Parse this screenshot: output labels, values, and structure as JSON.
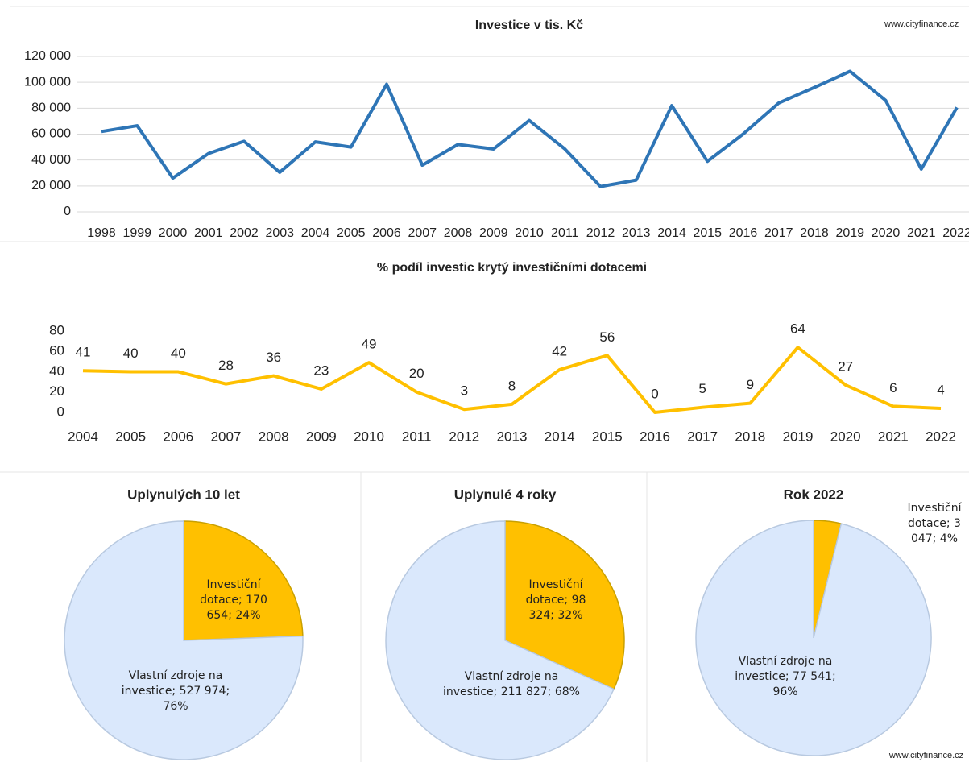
{
  "chart_data": [
    {
      "type": "line",
      "title": "Investice v tis. Kč",
      "note": "www.cityfinance.cz",
      "color": "#2e75b6",
      "grid": true,
      "categories": [
        "1998",
        "1999",
        "2000",
        "2001",
        "2002",
        "2003",
        "2004",
        "2005",
        "2006",
        "2007",
        "2008",
        "2009",
        "2010",
        "2011",
        "2012",
        "2013",
        "2014",
        "2015",
        "2016",
        "2017",
        "2018",
        "2019",
        "2020",
        "2021",
        "2022"
      ],
      "values": [
        62000,
        66500,
        26000,
        45000,
        54500,
        30500,
        54000,
        50000,
        98500,
        36000,
        52000,
        48500,
        70500,
        48500,
        19500,
        24500,
        82000,
        39000,
        60000,
        84000,
        96000,
        108500,
        86000,
        33000,
        80588
      ],
      "ylim": [
        0,
        120000
      ],
      "yticks": [
        0,
        {
          "value": 20000,
          "label": "20 000"
        },
        {
          "value": 40000,
          "label": "40 000"
        },
        {
          "value": 60000,
          "label": "60 000"
        },
        {
          "value": 80000,
          "label": "80 000"
        },
        {
          "value": 100000,
          "label": "100 000"
        },
        {
          "value": 120000,
          "label": "120 000"
        }
      ]
    },
    {
      "type": "line",
      "title": "% podíl investic krytý investičními dotacemi",
      "color": "#ffc000",
      "grid": false,
      "data_labels": true,
      "categories": [
        "2004",
        "2005",
        "2006",
        "2007",
        "2008",
        "2009",
        "2010",
        "2011",
        "2012",
        "2013",
        "2014",
        "2015",
        "2016",
        "2017",
        "2018",
        "2019",
        "2020",
        "2021",
        "2022"
      ],
      "values": [
        41,
        40,
        40,
        28,
        36,
        23,
        49,
        20,
        3,
        8,
        42,
        56,
        0,
        5,
        9,
        64,
        27,
        6,
        4
      ],
      "ylim": [
        0,
        80
      ],
      "yticks": [
        0,
        20,
        40,
        60,
        80
      ]
    },
    {
      "type": "pie",
      "title": "Uplynulých 10 let",
      "colors": [
        "#ffc000",
        "#dae8fc"
      ],
      "labels": [
        "Investiční dotace; 170 654; 24%",
        "Vlastní zdroje na investice; 527 974; 76%"
      ],
      "values": [
        170654,
        527974
      ]
    },
    {
      "type": "pie",
      "title": "Uplynulé 4 roky",
      "colors": [
        "#ffc000",
        "#dae8fc"
      ],
      "labels": [
        "Investiční dotace; 98 324; 32%",
        "Vlastní zdroje na investice; 211 827; 68%"
      ],
      "values": [
        98324,
        211827
      ]
    },
    {
      "type": "pie",
      "title": "Rok 2022",
      "note": "www.cityfinance.cz",
      "colors": [
        "#ffc000",
        "#dae8fc"
      ],
      "labels": [
        "Investiční dotace; 3 047; 4%",
        "Vlastní zdroje na investice; 77 541; 96%"
      ],
      "values": [
        3047,
        77541
      ]
    }
  ]
}
